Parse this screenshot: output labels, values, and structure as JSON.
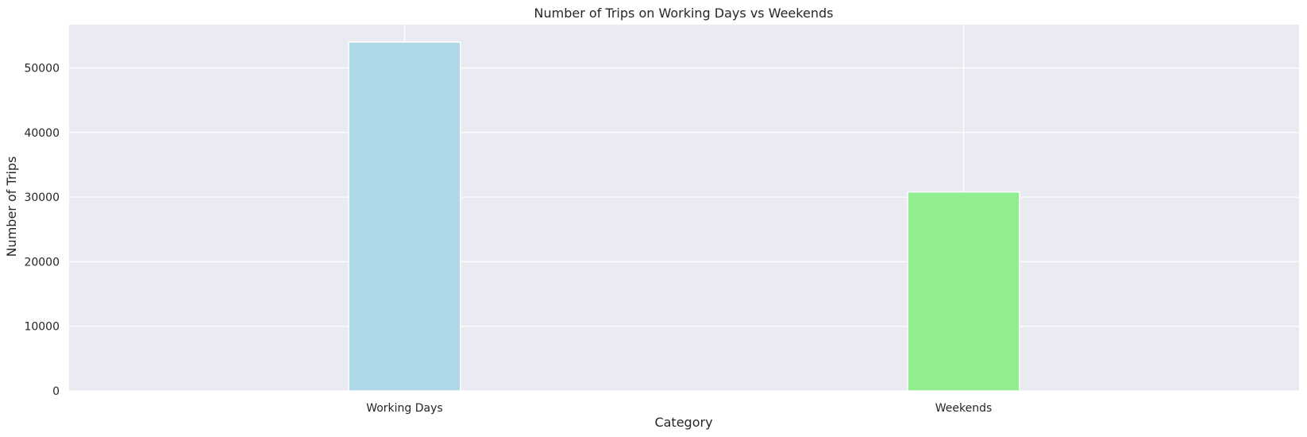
{
  "chart_data": {
    "type": "bar",
    "title": "Number of Trips on Working Days vs Weekends",
    "xlabel": "Category",
    "ylabel": "Number of Trips",
    "categories": [
      "Working Days",
      "Weekends"
    ],
    "values": [
      54000,
      30800
    ],
    "colors": [
      "#add8e6",
      "#90ee90"
    ],
    "ylim": [
      0,
      56700
    ],
    "yticks": [
      0,
      10000,
      20000,
      30000,
      40000,
      50000
    ],
    "ytick_labels": [
      "0",
      "10000",
      "20000",
      "30000",
      "40000",
      "50000"
    ],
    "grid": true,
    "legend": "none",
    "background_color": "#eaeaf2"
  }
}
